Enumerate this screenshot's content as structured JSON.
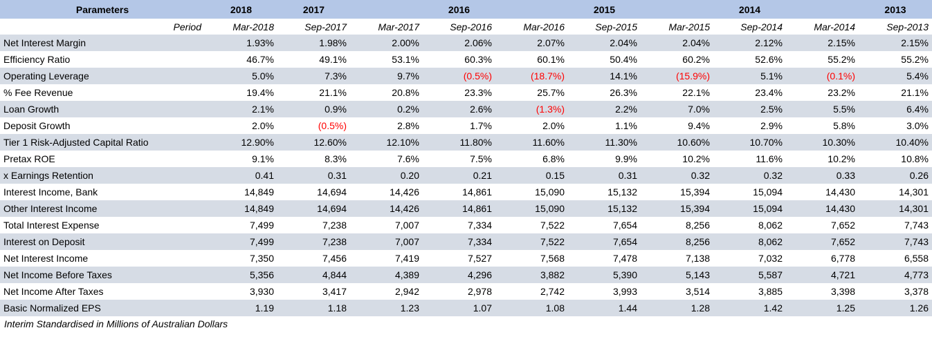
{
  "header": {
    "parameters_label": "Parameters",
    "years": [
      "2018",
      "2017",
      "",
      "2016",
      "",
      "2015",
      "",
      "2014",
      "",
      "2013"
    ]
  },
  "period_label": "Period",
  "periods": [
    "Mar-2018",
    "Sep-2017",
    "Mar-2017",
    "Sep-2016",
    "Mar-2016",
    "Sep-2015",
    "Mar-2015",
    "Sep-2014",
    "Mar-2014",
    "Sep-2013"
  ],
  "rows": [
    {
      "name": "Net Interest Margin",
      "values": [
        "1.93%",
        "1.98%",
        "2.00%",
        "2.06%",
        "2.07%",
        "2.04%",
        "2.04%",
        "2.12%",
        "2.15%",
        "2.15%"
      ]
    },
    {
      "name": "Efficiency Ratio",
      "values": [
        "46.7%",
        "49.1%",
        "53.1%",
        "60.3%",
        "60.1%",
        "50.4%",
        "60.2%",
        "52.6%",
        "55.2%",
        "55.2%"
      ]
    },
    {
      "name": "Operating Leverage",
      "values": [
        "5.0%",
        "7.3%",
        "9.7%",
        "(0.5%)",
        "(18.7%)",
        "14.1%",
        "(15.9%)",
        "5.1%",
        "(0.1%)",
        "5.4%"
      ]
    },
    {
      "name": "% Fee Revenue",
      "values": [
        "19.4%",
        "21.1%",
        "20.8%",
        "23.3%",
        "25.7%",
        "26.3%",
        "22.1%",
        "23.4%",
        "23.2%",
        "21.1%"
      ]
    },
    {
      "name": "Loan Growth",
      "values": [
        "2.1%",
        "0.9%",
        "0.2%",
        "2.6%",
        "(1.3%)",
        "2.2%",
        "7.0%",
        "2.5%",
        "5.5%",
        "6.4%"
      ]
    },
    {
      "name": "Deposit Growth",
      "values": [
        "2.0%",
        "(0.5%)",
        "2.8%",
        "1.7%",
        "2.0%",
        "1.1%",
        "9.4%",
        "2.9%",
        "5.8%",
        "3.0%"
      ]
    },
    {
      "name": "Tier 1 Risk-Adjusted Capital Ratio",
      "values": [
        "12.90%",
        "12.60%",
        "12.10%",
        "11.80%",
        "11.60%",
        "11.30%",
        "10.60%",
        "10.70%",
        "10.30%",
        "10.40%"
      ]
    },
    {
      "name": "Pretax ROE",
      "values": [
        "9.1%",
        "8.3%",
        "7.6%",
        "7.5%",
        "6.8%",
        "9.9%",
        "10.2%",
        "11.6%",
        "10.2%",
        "10.8%"
      ]
    },
    {
      "name": "x Earnings Retention",
      "values": [
        "0.41",
        "0.31",
        "0.20",
        "0.21",
        "0.15",
        "0.31",
        "0.32",
        "0.32",
        "0.33",
        "0.26"
      ]
    },
    {
      "name": "Interest Income, Bank",
      "values": [
        "14,849",
        "14,694",
        "14,426",
        "14,861",
        "15,090",
        "15,132",
        "15,394",
        "15,094",
        "14,430",
        "14,301"
      ]
    },
    {
      "name": "Other Interest Income",
      "values": [
        "14,849",
        "14,694",
        "14,426",
        "14,861",
        "15,090",
        "15,132",
        "15,394",
        "15,094",
        "14,430",
        "14,301"
      ]
    },
    {
      "name": "Total Interest Expense",
      "values": [
        "7,499",
        "7,238",
        "7,007",
        "7,334",
        "7,522",
        "7,654",
        "8,256",
        "8,062",
        "7,652",
        "7,743"
      ]
    },
    {
      "name": "Interest on Deposit",
      "values": [
        "7,499",
        "7,238",
        "7,007",
        "7,334",
        "7,522",
        "7,654",
        "8,256",
        "8,062",
        "7,652",
        "7,743"
      ]
    },
    {
      "name": "Net Interest Income",
      "values": [
        "7,350",
        "7,456",
        "7,419",
        "7,527",
        "7,568",
        "7,478",
        "7,138",
        "7,032",
        "6,778",
        "6,558"
      ]
    },
    {
      "name": "Net Income Before Taxes",
      "values": [
        "5,356",
        "4,844",
        "4,389",
        "4,296",
        "3,882",
        "5,390",
        "5,143",
        "5,587",
        "4,721",
        "4,773"
      ]
    },
    {
      "name": "Net Income After Taxes",
      "values": [
        "3,930",
        "3,417",
        "2,942",
        "2,978",
        "2,742",
        "3,993",
        "3,514",
        "3,885",
        "3,398",
        "3,378"
      ]
    },
    {
      "name": "Basic Normalized EPS",
      "values": [
        "1.19",
        "1.18",
        "1.23",
        "1.07",
        "1.08",
        "1.44",
        "1.28",
        "1.42",
        "1.25",
        "1.26"
      ]
    }
  ],
  "footnote": "Interim Standardised in Millions of Australian Dollars",
  "colors": {
    "header_bg": "#b4c7e7",
    "shaded_row_bg": "#d6dce5",
    "negative_text": "#ff0000"
  }
}
